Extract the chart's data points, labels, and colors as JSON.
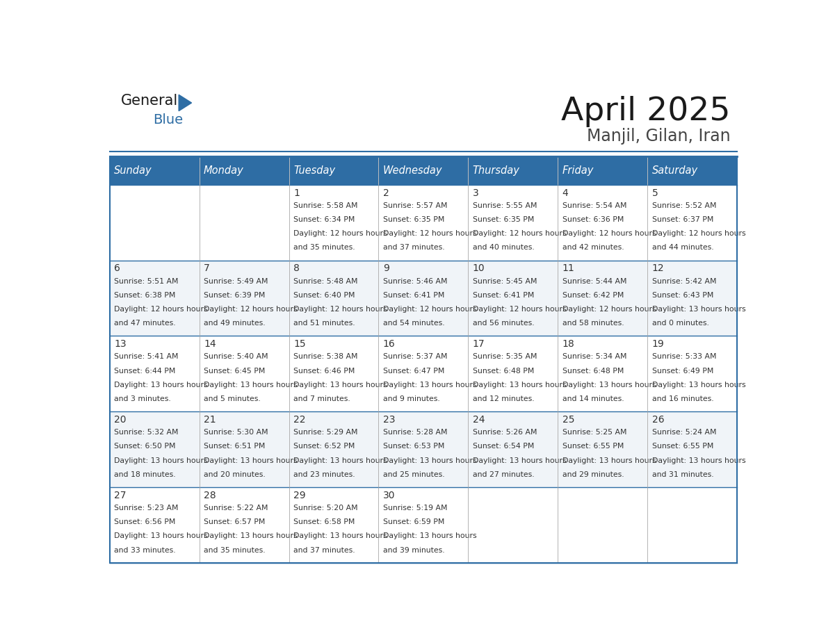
{
  "title": "April 2025",
  "subtitle": "Manjil, Gilan, Iran",
  "header_color": "#2E6DA4",
  "header_text_color": "#FFFFFF",
  "days_of_week": [
    "Sunday",
    "Monday",
    "Tuesday",
    "Wednesday",
    "Thursday",
    "Friday",
    "Saturday"
  ],
  "background_color": "#FFFFFF",
  "cell_bg_even": "#FFFFFF",
  "cell_bg_odd": "#F0F4F8",
  "border_color": "#2E6DA4",
  "text_color": "#333333",
  "day_number_color": "#333333",
  "calendar_data": [
    [
      {
        "day": "",
        "sunrise": "",
        "sunset": "",
        "daylight": ""
      },
      {
        "day": "",
        "sunrise": "",
        "sunset": "",
        "daylight": ""
      },
      {
        "day": "1",
        "sunrise": "5:58 AM",
        "sunset": "6:34 PM",
        "daylight": "12 hours and 35 minutes."
      },
      {
        "day": "2",
        "sunrise": "5:57 AM",
        "sunset": "6:35 PM",
        "daylight": "12 hours and 37 minutes."
      },
      {
        "day": "3",
        "sunrise": "5:55 AM",
        "sunset": "6:35 PM",
        "daylight": "12 hours and 40 minutes."
      },
      {
        "day": "4",
        "sunrise": "5:54 AM",
        "sunset": "6:36 PM",
        "daylight": "12 hours and 42 minutes."
      },
      {
        "day": "5",
        "sunrise": "5:52 AM",
        "sunset": "6:37 PM",
        "daylight": "12 hours and 44 minutes."
      }
    ],
    [
      {
        "day": "6",
        "sunrise": "5:51 AM",
        "sunset": "6:38 PM",
        "daylight": "12 hours and 47 minutes."
      },
      {
        "day": "7",
        "sunrise": "5:49 AM",
        "sunset": "6:39 PM",
        "daylight": "12 hours and 49 minutes."
      },
      {
        "day": "8",
        "sunrise": "5:48 AM",
        "sunset": "6:40 PM",
        "daylight": "12 hours and 51 minutes."
      },
      {
        "day": "9",
        "sunrise": "5:46 AM",
        "sunset": "6:41 PM",
        "daylight": "12 hours and 54 minutes."
      },
      {
        "day": "10",
        "sunrise": "5:45 AM",
        "sunset": "6:41 PM",
        "daylight": "12 hours and 56 minutes."
      },
      {
        "day": "11",
        "sunrise": "5:44 AM",
        "sunset": "6:42 PM",
        "daylight": "12 hours and 58 minutes."
      },
      {
        "day": "12",
        "sunrise": "5:42 AM",
        "sunset": "6:43 PM",
        "daylight": "13 hours and 0 minutes."
      }
    ],
    [
      {
        "day": "13",
        "sunrise": "5:41 AM",
        "sunset": "6:44 PM",
        "daylight": "13 hours and 3 minutes."
      },
      {
        "day": "14",
        "sunrise": "5:40 AM",
        "sunset": "6:45 PM",
        "daylight": "13 hours and 5 minutes."
      },
      {
        "day": "15",
        "sunrise": "5:38 AM",
        "sunset": "6:46 PM",
        "daylight": "13 hours and 7 minutes."
      },
      {
        "day": "16",
        "sunrise": "5:37 AM",
        "sunset": "6:47 PM",
        "daylight": "13 hours and 9 minutes."
      },
      {
        "day": "17",
        "sunrise": "5:35 AM",
        "sunset": "6:48 PM",
        "daylight": "13 hours and 12 minutes."
      },
      {
        "day": "18",
        "sunrise": "5:34 AM",
        "sunset": "6:48 PM",
        "daylight": "13 hours and 14 minutes."
      },
      {
        "day": "19",
        "sunrise": "5:33 AM",
        "sunset": "6:49 PM",
        "daylight": "13 hours and 16 minutes."
      }
    ],
    [
      {
        "day": "20",
        "sunrise": "5:32 AM",
        "sunset": "6:50 PM",
        "daylight": "13 hours and 18 minutes."
      },
      {
        "day": "21",
        "sunrise": "5:30 AM",
        "sunset": "6:51 PM",
        "daylight": "13 hours and 20 minutes."
      },
      {
        "day": "22",
        "sunrise": "5:29 AM",
        "sunset": "6:52 PM",
        "daylight": "13 hours and 23 minutes."
      },
      {
        "day": "23",
        "sunrise": "5:28 AM",
        "sunset": "6:53 PM",
        "daylight": "13 hours and 25 minutes."
      },
      {
        "day": "24",
        "sunrise": "5:26 AM",
        "sunset": "6:54 PM",
        "daylight": "13 hours and 27 minutes."
      },
      {
        "day": "25",
        "sunrise": "5:25 AM",
        "sunset": "6:55 PM",
        "daylight": "13 hours and 29 minutes."
      },
      {
        "day": "26",
        "sunrise": "5:24 AM",
        "sunset": "6:55 PM",
        "daylight": "13 hours and 31 minutes."
      }
    ],
    [
      {
        "day": "27",
        "sunrise": "5:23 AM",
        "sunset": "6:56 PM",
        "daylight": "13 hours and 33 minutes."
      },
      {
        "day": "28",
        "sunrise": "5:22 AM",
        "sunset": "6:57 PM",
        "daylight": "13 hours and 35 minutes."
      },
      {
        "day": "29",
        "sunrise": "5:20 AM",
        "sunset": "6:58 PM",
        "daylight": "13 hours and 37 minutes."
      },
      {
        "day": "30",
        "sunrise": "5:19 AM",
        "sunset": "6:59 PM",
        "daylight": "13 hours and 39 minutes."
      },
      {
        "day": "",
        "sunrise": "",
        "sunset": "",
        "daylight": ""
      },
      {
        "day": "",
        "sunrise": "",
        "sunset": "",
        "daylight": ""
      },
      {
        "day": "",
        "sunrise": "",
        "sunset": "",
        "daylight": ""
      }
    ]
  ],
  "logo_text_general": "General",
  "logo_text_blue": "Blue",
  "logo_triangle_color": "#2E6DA4"
}
